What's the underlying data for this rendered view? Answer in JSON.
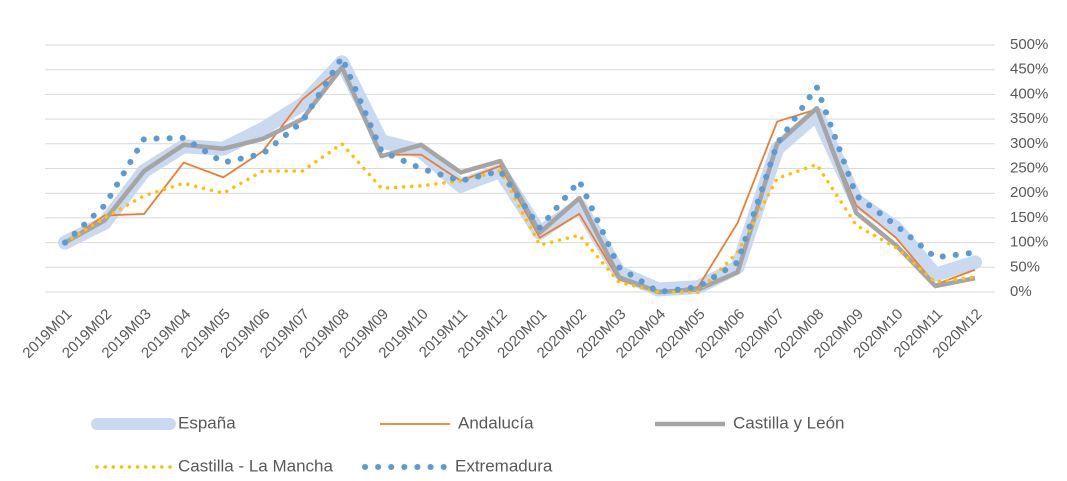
{
  "chart_data": {
    "type": "line",
    "categories": [
      "2019M01",
      "2019M02",
      "2019M03",
      "2019M04",
      "2019M05",
      "2019M06",
      "2019M07",
      "2019M08",
      "2019M09",
      "2019M10",
      "2019M11",
      "2019M12",
      "2020M01",
      "2020M02",
      "2020M03",
      "2020M04",
      "2020M05",
      "2020M06",
      "2020M07",
      "2020M08",
      "2020M09",
      "2020M10",
      "2020M11",
      "2020M12"
    ],
    "series": [
      {
        "name": "España",
        "color": "#c9d9f0",
        "values": [
          100,
          140,
          245,
          295,
          290,
          330,
          380,
          465,
          305,
          285,
          215,
          245,
          120,
          175,
          40,
          5,
          10,
          50,
          290,
          360,
          185,
          130,
          35,
          60
        ]
      },
      {
        "name": "Andalucía",
        "color": "#ed7d31",
        "values": [
          100,
          155,
          158,
          262,
          232,
          285,
          390,
          455,
          278,
          278,
          225,
          255,
          110,
          158,
          25,
          0,
          10,
          140,
          345,
          370,
          175,
          110,
          15,
          45
        ]
      },
      {
        "name": "Castilla y León",
        "color": "#a5a5a5",
        "values": [
          100,
          145,
          245,
          298,
          290,
          310,
          350,
          455,
          275,
          298,
          242,
          265,
          120,
          190,
          30,
          0,
          5,
          40,
          300,
          372,
          160,
          95,
          12,
          28
        ]
      },
      {
        "name": "Castilla - La Mancha",
        "color": "#ffc000",
        "values": [
          100,
          150,
          195,
          220,
          200,
          245,
          245,
          300,
          210,
          215,
          225,
          245,
          95,
          115,
          20,
          0,
          0,
          80,
          230,
          258,
          135,
          90,
          20,
          30
        ]
      },
      {
        "name": "Extremadura",
        "color": "#5b9bd5",
        "values": [
          100,
          175,
          310,
          312,
          262,
          280,
          345,
          475,
          285,
          250,
          225,
          245,
          130,
          225,
          50,
          0,
          10,
          60,
          300,
          415,
          195,
          135,
          70,
          80
        ]
      }
    ],
    "ylim": [
      0,
      500
    ],
    "yticks": [
      {
        "value": 0,
        "label": "0%"
      },
      {
        "value": 50,
        "label": "50%"
      },
      {
        "value": 100,
        "label": "100%"
      },
      {
        "value": 150,
        "label": "150%"
      },
      {
        "value": 200,
        "label": "200%"
      },
      {
        "value": 250,
        "label": "250%"
      },
      {
        "value": 300,
        "label": "300%"
      },
      {
        "value": 350,
        "label": "350%"
      },
      {
        "value": 400,
        "label": "400%"
      },
      {
        "value": 450,
        "label": "450%"
      },
      {
        "value": 500,
        "label": "500%"
      }
    ],
    "grid": true
  }
}
